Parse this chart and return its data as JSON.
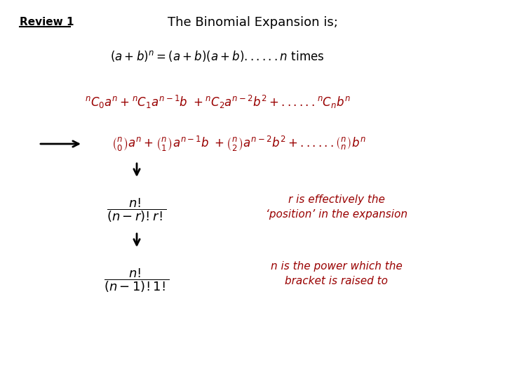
{
  "title": "The Binomial Expansion is;",
  "review_label": "Review 1",
  "bg_color": "#ffffff",
  "black": "#000000",
  "red": "#990000",
  "annot1_line1": "r is effectively the",
  "annot1_line2": "‘position’ in the expansion",
  "annot2_line1": "n is the power which the",
  "annot2_line2": "bracket is raised to"
}
